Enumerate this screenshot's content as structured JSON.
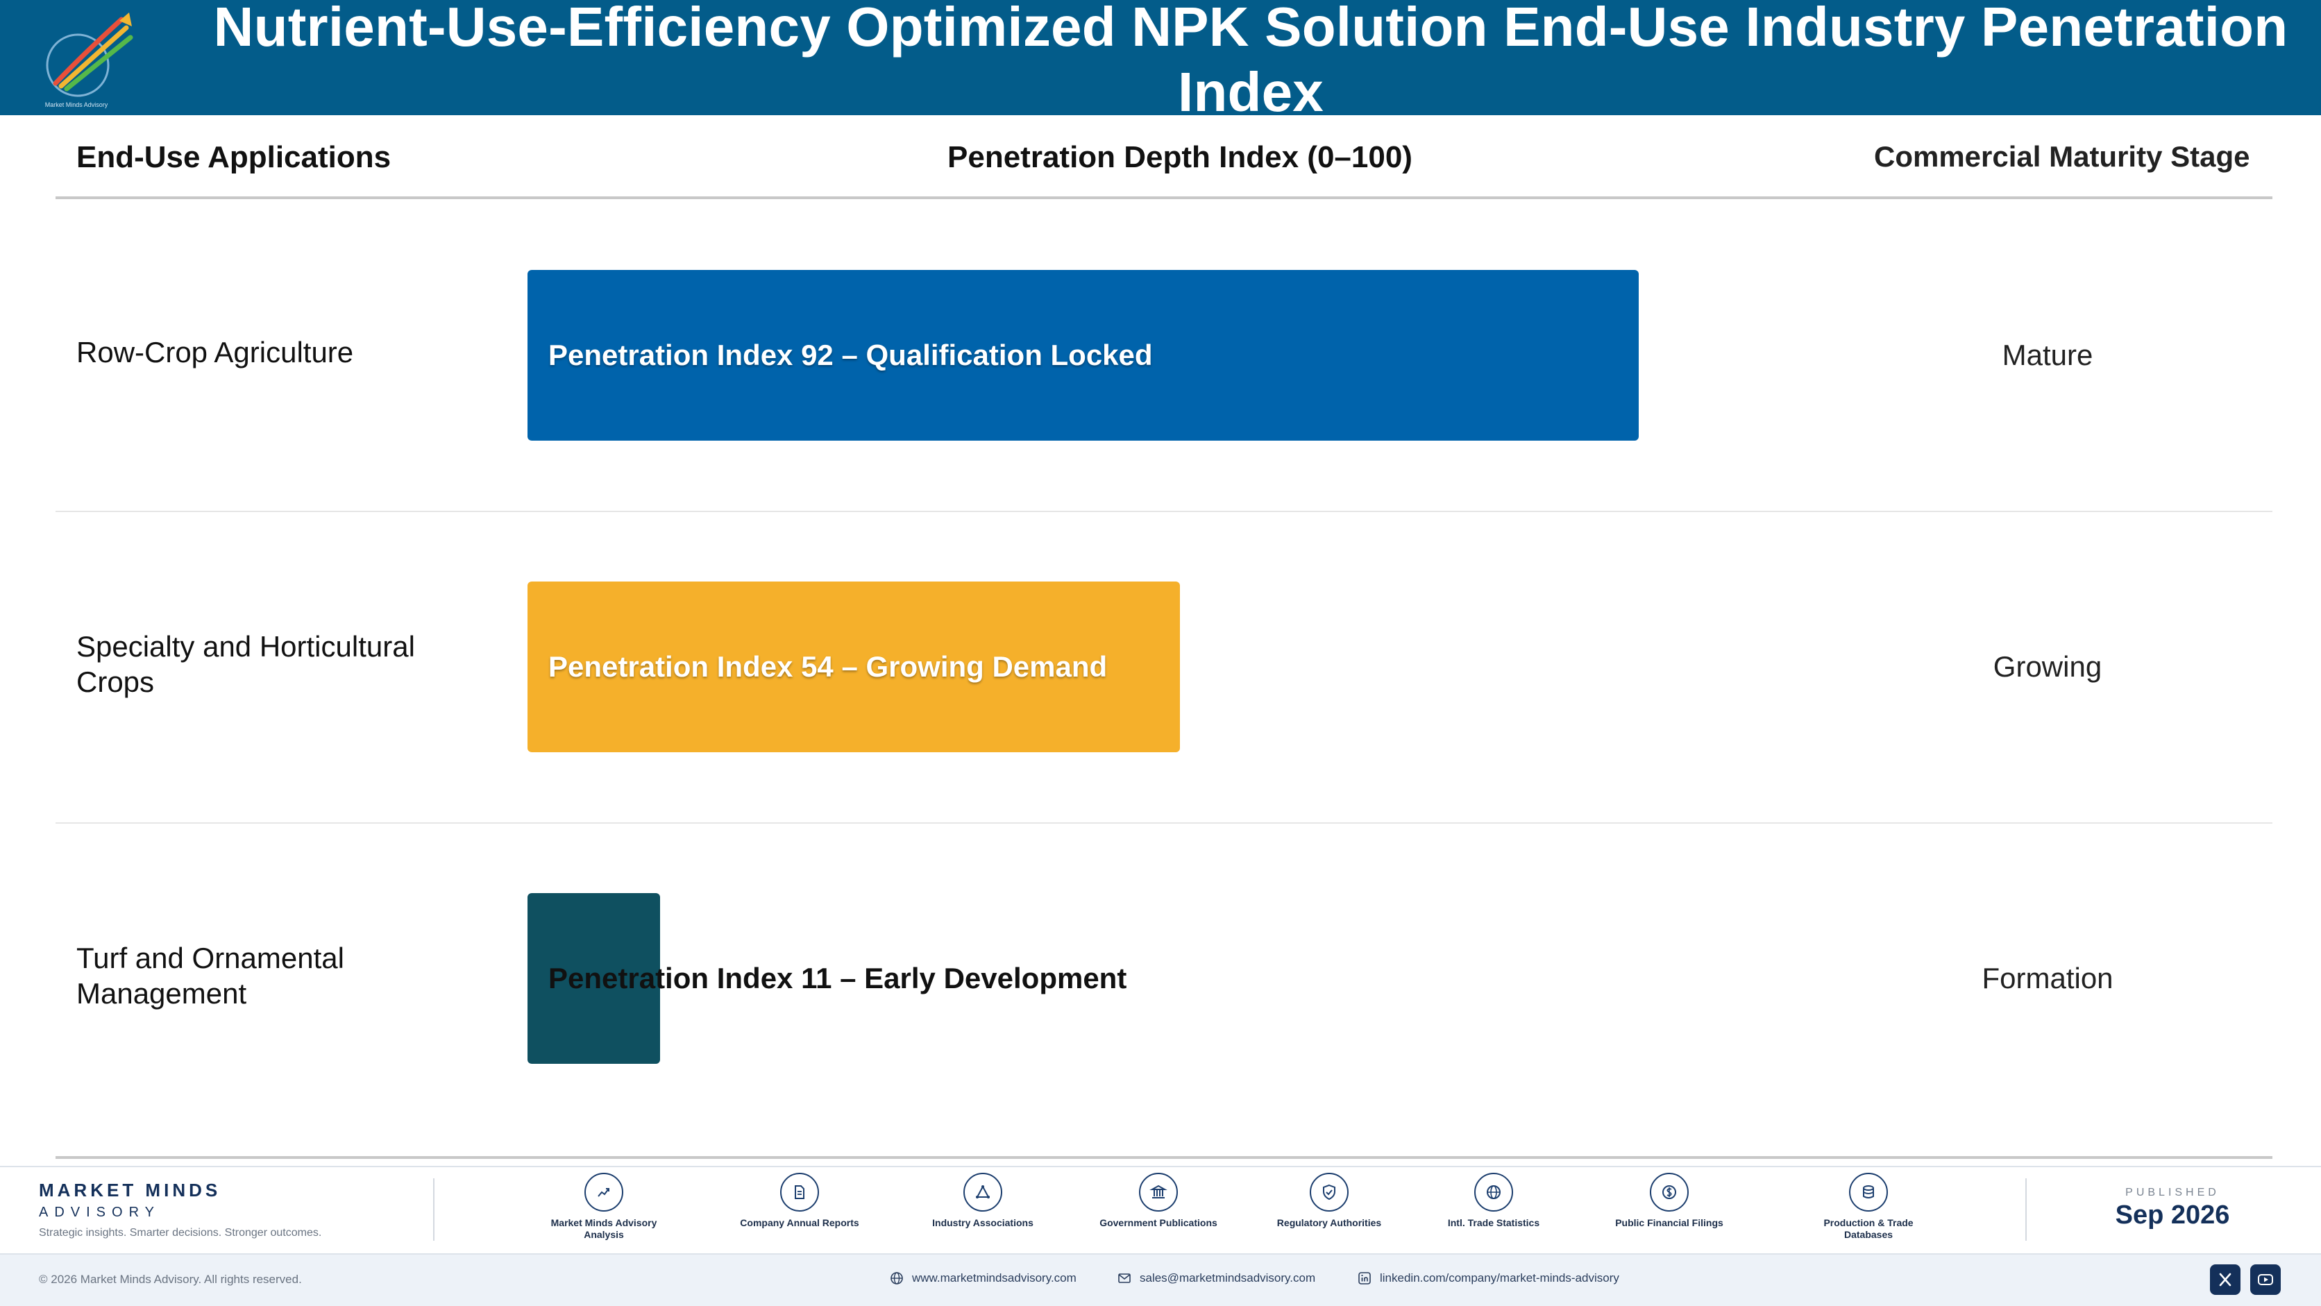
{
  "header": {
    "title": "Nutrient-Use-Efficiency Optimized NPK Solution End-Use Industry Penetration Index",
    "logo_text": "Market Minds Advisory"
  },
  "table": {
    "col_applications": "End-Use Applications",
    "col_depth": "Penetration Depth Index (0–100)",
    "col_stage": "Commercial Maturity Stage"
  },
  "chart_data": {
    "type": "bar",
    "orientation": "horizontal",
    "xlim": [
      0,
      100
    ],
    "categories": [
      "Row-Crop Agriculture",
      "Specialty and Horticultural Crops",
      "Turf and Ornamental Management"
    ],
    "values": [
      92,
      54,
      11
    ],
    "bar_labels": [
      "Penetration Index 92 – Qualification Locked",
      "Penetration Index 54 – Growing Demand",
      "Penetration Index 11 – Early Development"
    ],
    "stages": [
      "Mature",
      "Growing",
      "Formation"
    ],
    "colors": [
      "#0063ab",
      "#f5b02b",
      "#0f5060"
    ]
  },
  "footer": {
    "brand_name": "MARKET MINDS",
    "brand_sub": "ADVISORY",
    "tagline": "Strategic insights. Smarter decisions. Stronger outcomes.",
    "sources": [
      {
        "label": "Market Minds Advisory Analysis",
        "icon": "trend-chart-icon"
      },
      {
        "label": "Company Annual Reports",
        "icon": "document-icon"
      },
      {
        "label": "Industry Associations",
        "icon": "network-icon"
      },
      {
        "label": "Government Publications",
        "icon": "government-building-icon"
      },
      {
        "label": "Regulatory Authorities",
        "icon": "shield-check-icon"
      },
      {
        "label": "Intl. Trade Statistics",
        "icon": "globe-icon"
      },
      {
        "label": "Public Financial Filings",
        "icon": "dollar-coin-icon"
      },
      {
        "label": "Production & Trade Databases",
        "icon": "database-icon"
      }
    ],
    "published_label": "PUBLISHED",
    "published_date": "Sep 2026",
    "copyright": "© 2026 Market Minds Advisory. All rights reserved.",
    "website": "www.marketmindsadvisory.com",
    "email": "sales@marketmindsadvisory.com",
    "linkedin": "linkedin.com/company/market-minds-advisory"
  }
}
